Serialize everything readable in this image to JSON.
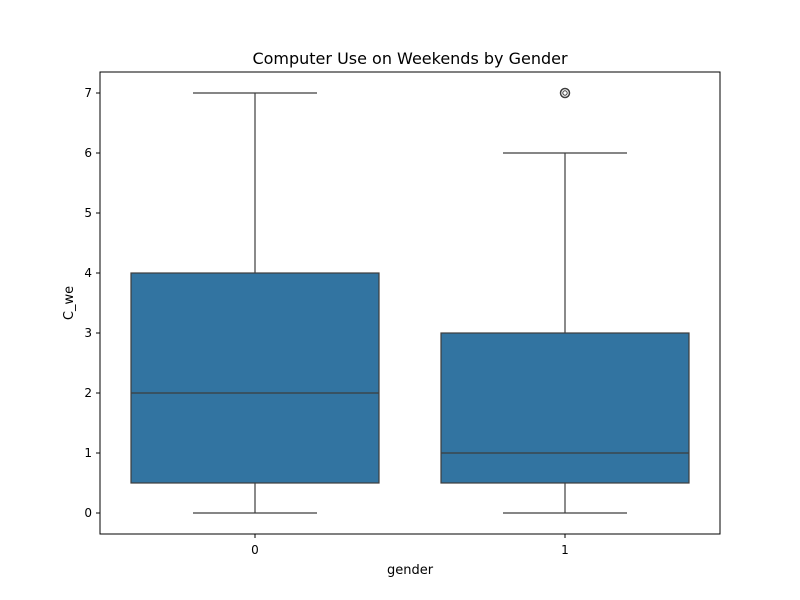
{
  "chart_data": {
    "type": "box",
    "title": "Computer Use on Weekends by Gender",
    "xlabel": "gender",
    "ylabel": "C_we",
    "categories": [
      "0",
      "1"
    ],
    "ylim": [
      -0.35,
      7.35
    ],
    "yticks": [
      0,
      1,
      2,
      3,
      4,
      5,
      6,
      7
    ],
    "grid": false,
    "box_color": "#3274a1",
    "line_color": "#3d3d3d",
    "boxes": [
      {
        "category": "0",
        "whisker_low": 0,
        "q1": 0.5,
        "median": 2,
        "q3": 4,
        "whisker_high": 7,
        "outliers": []
      },
      {
        "category": "1",
        "whisker_low": 0,
        "q1": 0.5,
        "median": 1,
        "q3": 3,
        "whisker_high": 6,
        "outliers": [
          7
        ]
      }
    ]
  }
}
